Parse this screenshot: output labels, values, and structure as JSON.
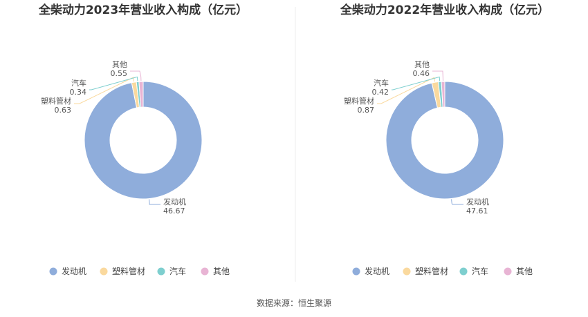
{
  "source_label": "数据来源：恒生聚源",
  "chart_data": [
    {
      "type": "pie",
      "title": "全柴动力2023年营业收入构成（亿元）",
      "categories": [
        "发动机",
        "塑料管材",
        "汽车",
        "其他"
      ],
      "values": [
        46.67,
        0.63,
        0.34,
        0.55
      ],
      "colors": [
        "#8FADDB",
        "#FAD99E",
        "#7ECFCF",
        "#E8B4D4"
      ],
      "legend_position": "bottom"
    },
    {
      "type": "pie",
      "title": "全柴动力2022年营业收入构成（亿元）",
      "categories": [
        "发动机",
        "塑料管材",
        "汽车",
        "其他"
      ],
      "values": [
        47.61,
        0.87,
        0.42,
        0.46
      ],
      "colors": [
        "#8FADDB",
        "#FAD99E",
        "#7ECFCF",
        "#E8B4D4"
      ],
      "legend_position": "bottom"
    }
  ]
}
